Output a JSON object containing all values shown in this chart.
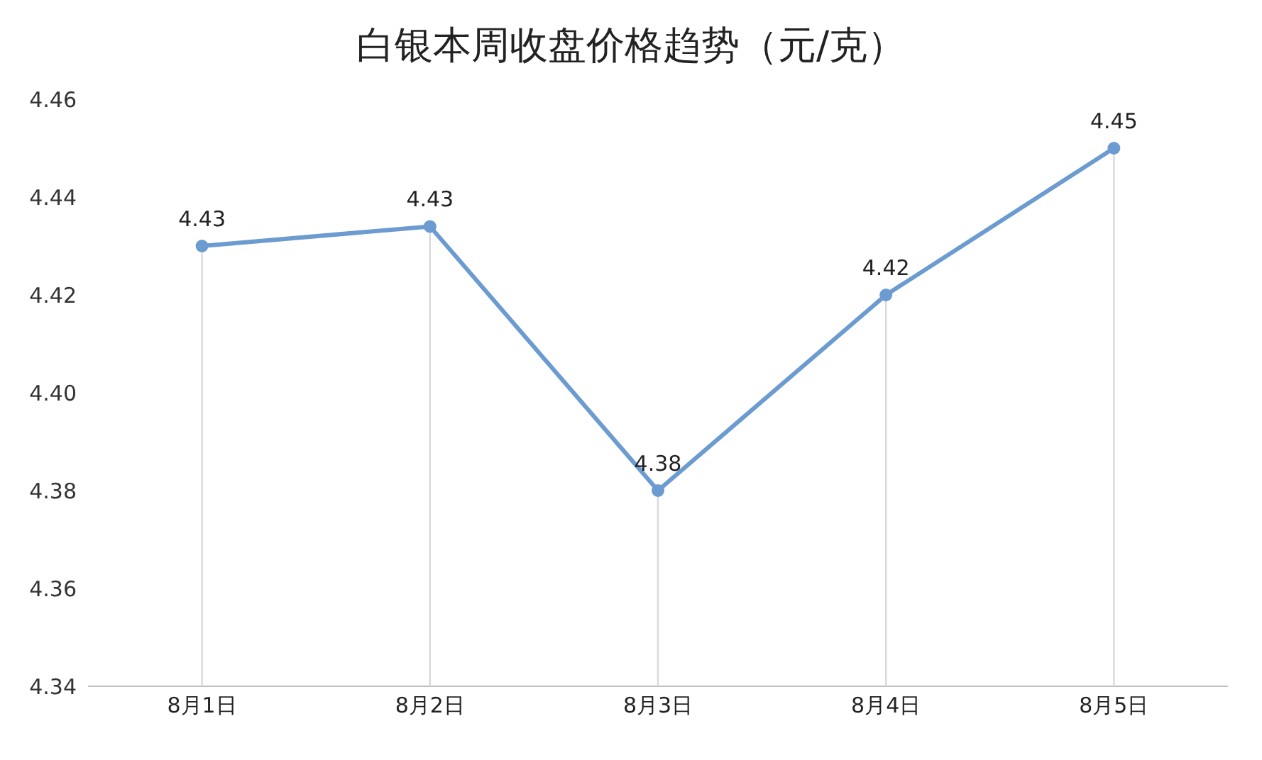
{
  "chart_data": {
    "type": "line",
    "title": "白银本周收盘价格趋势（元/克）",
    "categories": [
      "8月1日",
      "8月2日",
      "8月3日",
      "8月4日",
      "8月5日"
    ],
    "series": [
      {
        "color": "#6b9bd0",
        "values": [
          4.43,
          4.434,
          4.38,
          4.42,
          4.45
        ],
        "value_labels": [
          "4.43",
          "4.43",
          "4.38",
          "4.42",
          "4.45"
        ]
      }
    ],
    "ylim": [
      4.34,
      4.46
    ],
    "yticks": [
      4.34,
      4.36,
      4.38,
      {
        "value": 4.4,
        "label": "4.40"
      },
      4.42,
      4.44,
      4.46
    ],
    "grid": "x",
    "legend": false,
    "marker": "circle",
    "line_style": "solid"
  }
}
